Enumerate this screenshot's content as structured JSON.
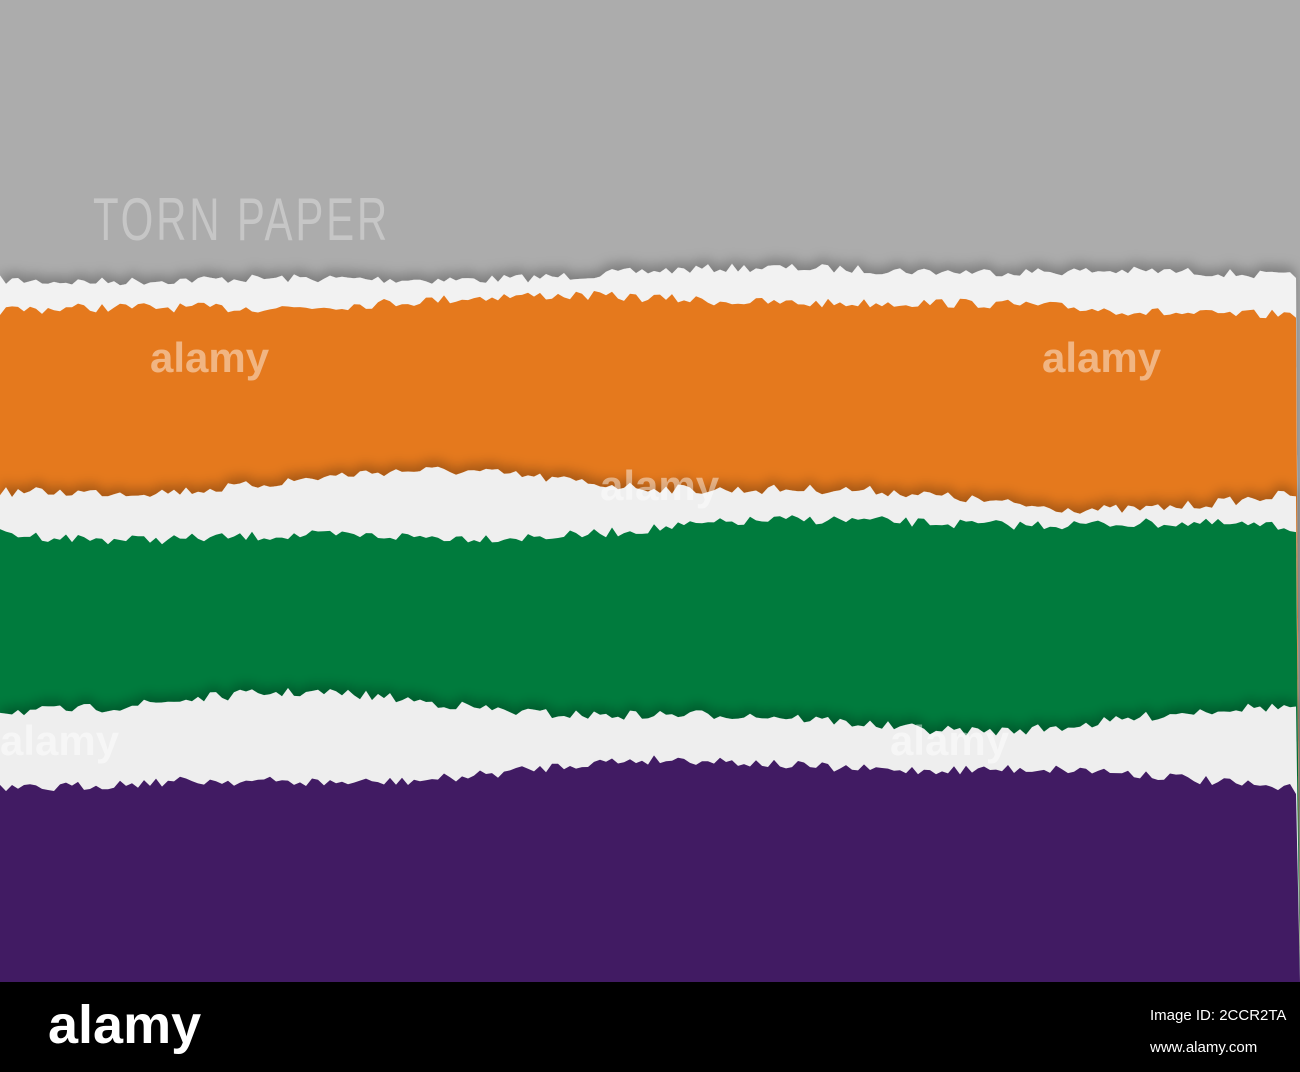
{
  "title": "TORN PAPER",
  "watermark": "alamy",
  "footer": {
    "logo": "alamy",
    "image_id": "Image ID: 2CCR2TA",
    "url": "www.alamy.com"
  }
}
